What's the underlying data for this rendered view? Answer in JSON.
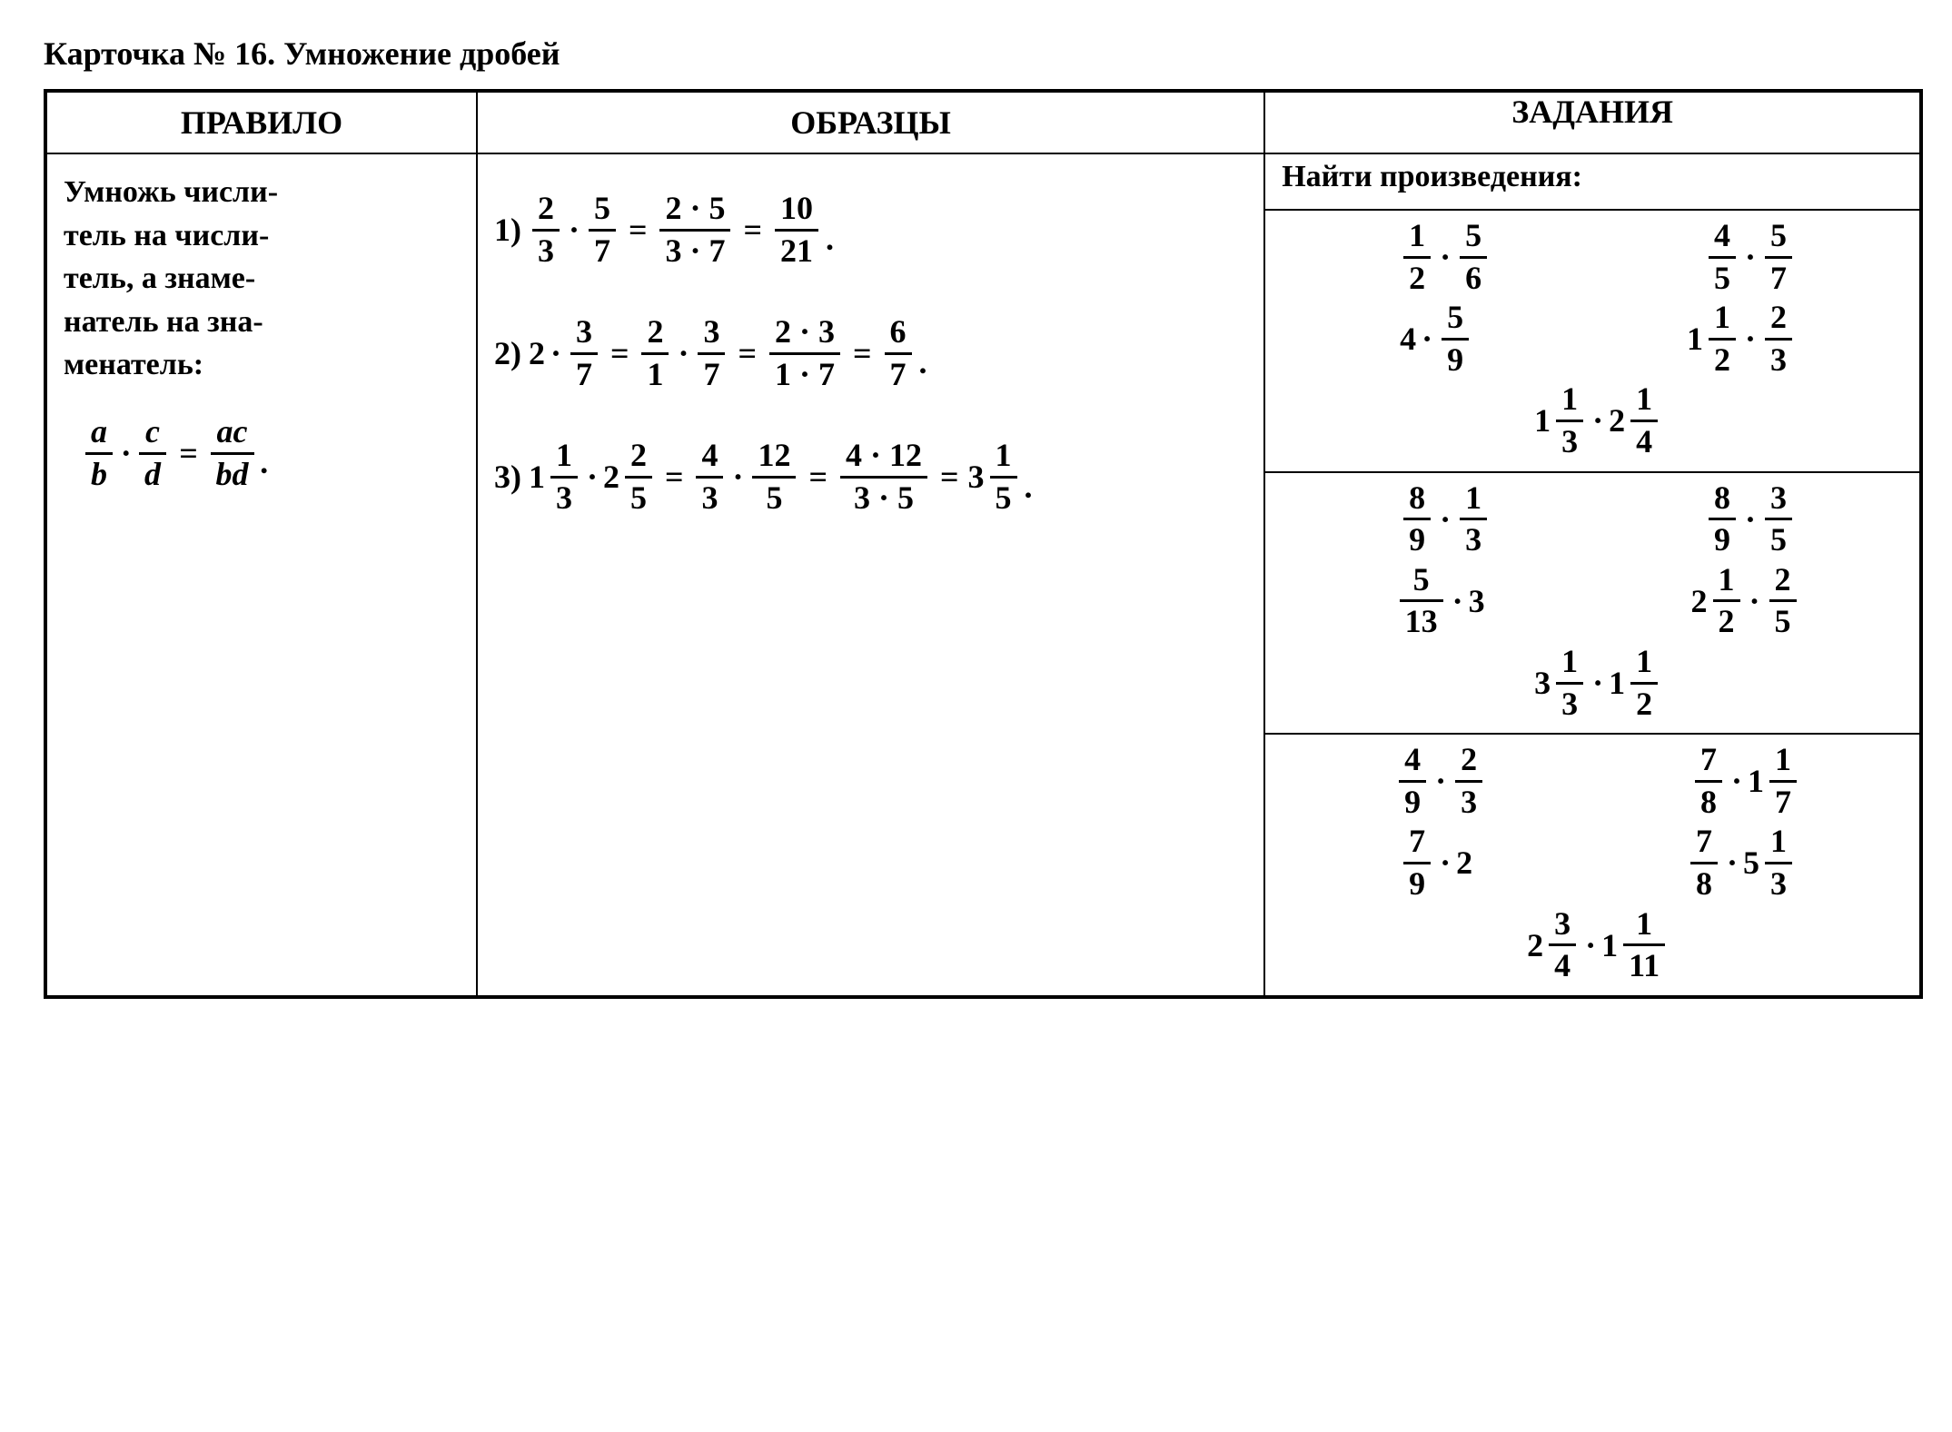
{
  "title": "Карточка № 16. Умножение дробей",
  "headers": {
    "rule": "ПРАВИЛО",
    "examples": "ОБРАЗЦЫ",
    "tasks": "ЗАДАНИЯ"
  },
  "rule_text_lines": [
    "Умножь числи-",
    "тель на числи-",
    "тель, а знаме-",
    "натель на зна-",
    "менатель:"
  ],
  "rule_formula": {
    "left1": {
      "n": "a",
      "d": "b"
    },
    "left2": {
      "n": "c",
      "d": "d"
    },
    "right": {
      "n": "ac",
      "d": "bd"
    }
  },
  "examples": [
    {
      "label": "1)",
      "parts": [
        {
          "t": "frac",
          "n": "2",
          "d": "3"
        },
        {
          "t": "dot"
        },
        {
          "t": "frac",
          "n": "5",
          "d": "7"
        },
        {
          "t": "eq"
        },
        {
          "t": "frac",
          "n": "2 · 5",
          "d": "3 · 7"
        },
        {
          "t": "eq"
        },
        {
          "t": "frac",
          "n": "10",
          "d": "21"
        },
        {
          "t": "period"
        }
      ]
    },
    {
      "label": "2)",
      "parts": [
        {
          "t": "txt",
          "v": "2"
        },
        {
          "t": "dot"
        },
        {
          "t": "frac",
          "n": "3",
          "d": "7"
        },
        {
          "t": "eq"
        },
        {
          "t": "frac",
          "n": "2",
          "d": "1"
        },
        {
          "t": "dot"
        },
        {
          "t": "frac",
          "n": "3",
          "d": "7"
        },
        {
          "t": "eq"
        },
        {
          "t": "frac",
          "n": "2 · 3",
          "d": "1 · 7"
        },
        {
          "t": "eq"
        },
        {
          "t": "frac",
          "n": "6",
          "d": "7"
        },
        {
          "t": "period"
        }
      ]
    },
    {
      "label": "3)",
      "parts": [
        {
          "t": "mixed",
          "w": "1",
          "n": "1",
          "d": "3"
        },
        {
          "t": "dot"
        },
        {
          "t": "mixed",
          "w": "2",
          "n": "2",
          "d": "5"
        },
        {
          "t": "eq"
        },
        {
          "t": "frac",
          "n": "4",
          "d": "3"
        },
        {
          "t": "dot"
        },
        {
          "t": "frac",
          "n": "12",
          "d": "5"
        },
        {
          "t": "eq"
        },
        {
          "t": "frac",
          "n": "4 · 12",
          "d": "3 · 5"
        },
        {
          "t": "eq"
        },
        {
          "t": "mixed",
          "w": "3",
          "n": "1",
          "d": "5"
        },
        {
          "t": "period"
        }
      ]
    }
  ],
  "tasks_heading": "Найти произведения:",
  "task_blocks": [
    {
      "rows": [
        [
          [
            {
              "t": "frac",
              "n": "1",
              "d": "2"
            },
            {
              "t": "dot"
            },
            {
              "t": "frac",
              "n": "5",
              "d": "6"
            }
          ],
          [
            {
              "t": "frac",
              "n": "4",
              "d": "5"
            },
            {
              "t": "dot"
            },
            {
              "t": "frac",
              "n": "5",
              "d": "7"
            }
          ]
        ],
        [
          [
            {
              "t": "txt",
              "v": "4"
            },
            {
              "t": "dot"
            },
            {
              "t": "frac",
              "n": "5",
              "d": "9"
            }
          ],
          [
            {
              "t": "mixed",
              "w": "1",
              "n": "1",
              "d": "2"
            },
            {
              "t": "dot"
            },
            {
              "t": "frac",
              "n": "2",
              "d": "3"
            }
          ]
        ]
      ],
      "center": [
        {
          "t": "mixed",
          "w": "1",
          "n": "1",
          "d": "3"
        },
        {
          "t": "dot"
        },
        {
          "t": "mixed",
          "w": "2",
          "n": "1",
          "d": "4"
        }
      ]
    },
    {
      "rows": [
        [
          [
            {
              "t": "frac",
              "n": "8",
              "d": "9"
            },
            {
              "t": "dot"
            },
            {
              "t": "frac",
              "n": "1",
              "d": "3"
            }
          ],
          [
            {
              "t": "frac",
              "n": "8",
              "d": "9"
            },
            {
              "t": "dot"
            },
            {
              "t": "frac",
              "n": "3",
              "d": "5"
            }
          ]
        ],
        [
          [
            {
              "t": "frac",
              "n": "5",
              "d": "13"
            },
            {
              "t": "dot"
            },
            {
              "t": "txt",
              "v": "3"
            }
          ],
          [
            {
              "t": "mixed",
              "w": "2",
              "n": "1",
              "d": "2"
            },
            {
              "t": "dot"
            },
            {
              "t": "frac",
              "n": "2",
              "d": "5"
            }
          ]
        ]
      ],
      "center": [
        {
          "t": "mixed",
          "w": "3",
          "n": "1",
          "d": "3"
        },
        {
          "t": "dot"
        },
        {
          "t": "mixed",
          "w": "1",
          "n": "1",
          "d": "2"
        }
      ]
    },
    {
      "rows": [
        [
          [
            {
              "t": "frac",
              "n": "4",
              "d": "9"
            },
            {
              "t": "dot"
            },
            {
              "t": "frac",
              "n": "2",
              "d": "3"
            }
          ],
          [
            {
              "t": "frac",
              "n": "7",
              "d": "8"
            },
            {
              "t": "dot"
            },
            {
              "t": "mixed",
              "w": "1",
              "n": "1",
              "d": "7"
            }
          ]
        ],
        [
          [
            {
              "t": "frac",
              "n": "7",
              "d": "9"
            },
            {
              "t": "dot"
            },
            {
              "t": "txt",
              "v": "2"
            }
          ],
          [
            {
              "t": "frac",
              "n": "7",
              "d": "8"
            },
            {
              "t": "dot"
            },
            {
              "t": "mixed",
              "w": "5",
              "n": "1",
              "d": "3"
            }
          ]
        ]
      ],
      "center": [
        {
          "t": "mixed",
          "w": "2",
          "n": "3",
          "d": "4"
        },
        {
          "t": "dot"
        },
        {
          "t": "mixed",
          "w": "1",
          "n": "1",
          "d": "11"
        }
      ]
    }
  ]
}
